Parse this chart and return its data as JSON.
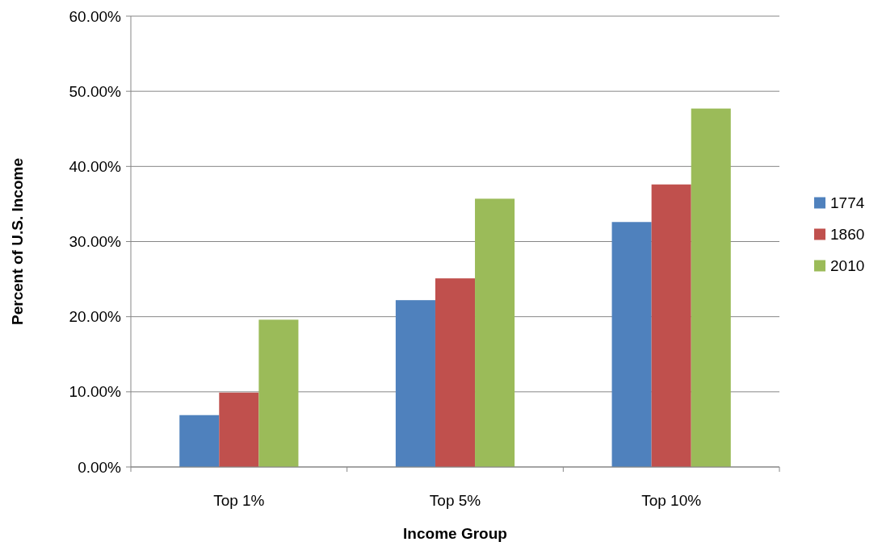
{
  "chart_data": {
    "type": "bar",
    "xlabel": "Income Group",
    "ylabel": "Percent of U.S. Income",
    "categories": [
      "Top 1%",
      "Top 5%",
      "Top 10%"
    ],
    "series": [
      {
        "name": "1774",
        "color": "#4f81bd",
        "values": [
          6.9,
          22.2,
          32.6
        ]
      },
      {
        "name": "1860",
        "color": "#c0504d",
        "values": [
          9.9,
          25.1,
          37.6
        ]
      },
      {
        "name": "2010",
        "color": "#9bbb59",
        "values": [
          19.6,
          35.7,
          47.7
        ]
      }
    ],
    "ylim": [
      0,
      60
    ],
    "yticks": [
      {
        "value": 0,
        "label": "0.00%"
      },
      {
        "value": 10,
        "label": "10.00%"
      },
      {
        "value": 20,
        "label": "20.00%"
      },
      {
        "value": 30,
        "label": "30.00%"
      },
      {
        "value": 40,
        "label": "40.00%"
      },
      {
        "value": 50,
        "label": "50.00%"
      },
      {
        "value": 60,
        "label": "60.00%"
      }
    ],
    "grid": "y",
    "legend": "right"
  }
}
